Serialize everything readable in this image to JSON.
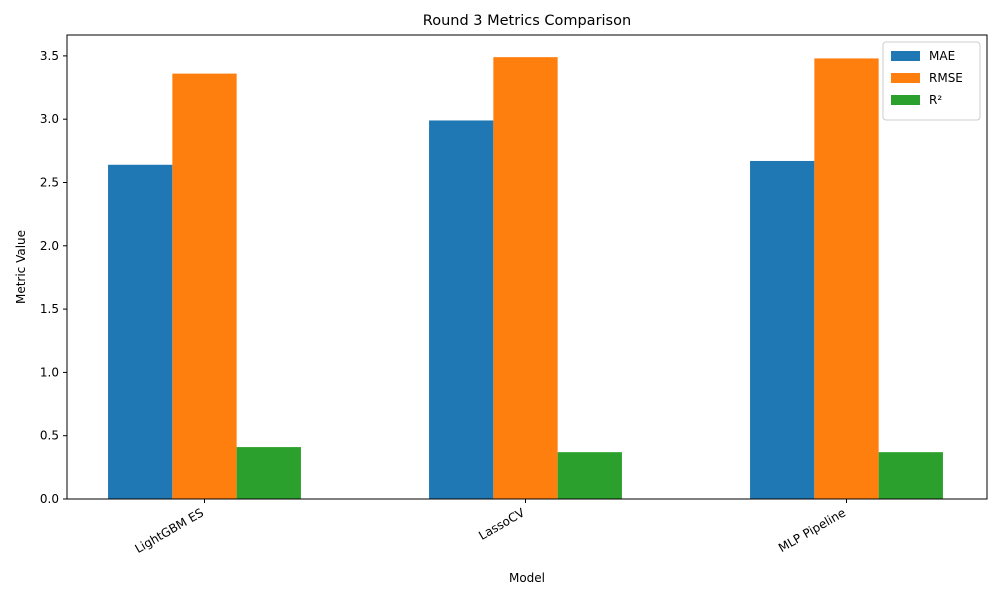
{
  "chart_data": {
    "type": "bar",
    "title": "Round 3 Metrics Comparison",
    "xlabel": "Model",
    "ylabel": "Metric Value",
    "categories": [
      "LightGBM ES",
      "LassoCV",
      "MLP Pipeline"
    ],
    "series": [
      {
        "name": "MAE",
        "color": "#1f77b4",
        "values": [
          2.64,
          2.99,
          2.67
        ]
      },
      {
        "name": "RMSE",
        "color": "#ff7f0e",
        "values": [
          3.36,
          3.49,
          3.48
        ]
      },
      {
        "name": "R²",
        "color": "#2ca02c",
        "values": [
          0.41,
          0.37,
          0.37
        ]
      }
    ],
    "ylim": [
      0,
      3.665
    ],
    "yticks": [
      0.0,
      0.5,
      1.0,
      1.5,
      2.0,
      2.5,
      3.0,
      3.5
    ],
    "ytick_labels": [
      "0.0",
      "0.5",
      "1.0",
      "1.5",
      "2.0",
      "2.5",
      "3.0",
      "3.5"
    ],
    "xtick_rotation_deg": 30,
    "grid": false,
    "legend": "top-right"
  }
}
